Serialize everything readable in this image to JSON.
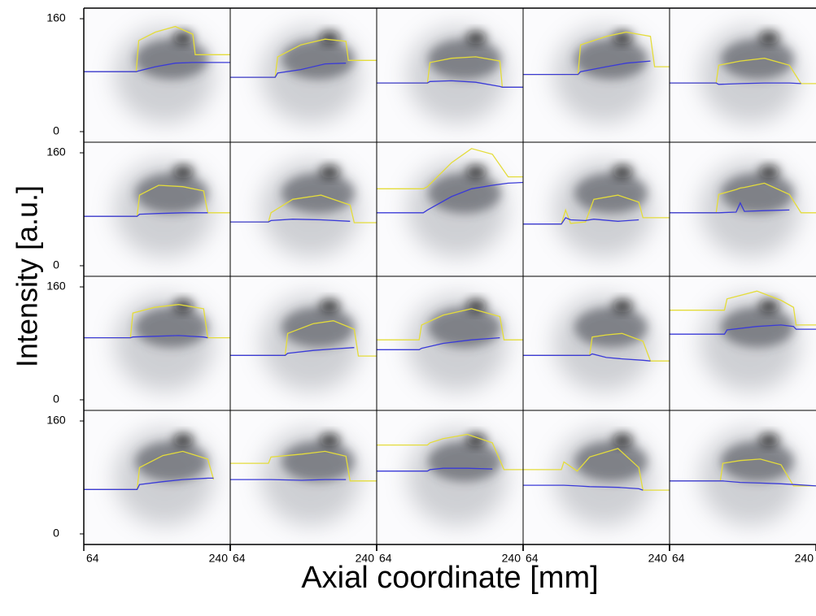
{
  "chart_data": {
    "type": "small-multiples",
    "xlabel": "Axial coordinate [mm]",
    "ylabel": "Intensity [a.u.]",
    "xlim": [
      64,
      240
    ],
    "ylim": [
      -15,
      175
    ],
    "xticks": [
      64,
      240
    ],
    "yticks": [
      0,
      160
    ],
    "panels": [
      {
        "type": "line",
        "x": [
          64,
          127,
          130,
          150,
          174,
          195,
          198,
          240
        ],
        "series": [
          {
            "color": "#e4dc3a",
            "values": [
              85,
              85,
              129,
              141,
              149,
              138,
              109,
              109
            ]
          },
          {
            "color": "#3a3ad8",
            "values": [
              85,
              85,
              86,
              92,
              97,
              98,
              98,
              98
            ]
          }
        ]
      },
      {
        "type": "line",
        "x": [
          64,
          118,
          121,
          149,
          178,
          203,
          206,
          240
        ],
        "series": [
          {
            "color": "#e4dc3a",
            "values": [
              77,
              77,
              106,
              123,
              131,
              128,
              101,
              101
            ]
          },
          {
            "color": "#3a3ad8",
            "values": [
              77,
              77,
              83,
              88,
              96,
              97,
              null,
              null
            ]
          }
        ]
      },
      {
        "type": "line",
        "x": [
          64,
          125,
          128,
          154,
          183,
          212,
          215,
          240
        ],
        "series": [
          {
            "color": "#e4dc3a",
            "values": [
              69,
              69,
              98,
              104,
              106,
              100,
              63,
              63
            ]
          },
          {
            "color": "#3a3ad8",
            "values": [
              69,
              69,
              71,
              72,
              70,
              64,
              63,
              63
            ]
          }
        ]
      },
      {
        "type": "line",
        "x": [
          64,
          130,
          133,
          164,
          188,
          217,
          222,
          240
        ],
        "series": [
          {
            "color": "#e4dc3a",
            "values": [
              81,
              81,
              123,
              135,
              141,
              135,
              92,
              92
            ]
          },
          {
            "color": "#3a3ad8",
            "values": [
              81,
              81,
              85,
              92,
              97,
              100,
              null,
              null
            ]
          }
        ]
      },
      {
        "type": "line",
        "x": [
          64,
          120,
          123,
          149,
          178,
          208,
          222,
          240
        ],
        "series": [
          {
            "color": "#e4dc3a",
            "values": [
              69,
              69,
              94,
              100,
              104,
              94,
              68,
              68
            ]
          },
          {
            "color": "#3a3ad8",
            "values": [
              69,
              69,
              67,
              68,
              69,
              69,
              68,
              null
            ]
          }
        ]
      },
      {
        "type": "line",
        "x": [
          64,
          128,
          131,
          154,
          183,
          208,
          213,
          240
        ],
        "series": [
          {
            "color": "#e4dc3a",
            "values": [
              70,
              70,
              100,
              114,
              112,
              106,
              75,
              75
            ]
          },
          {
            "color": "#3a3ad8",
            "values": [
              70,
              70,
              73,
              74,
              75,
              75,
              75,
              null
            ]
          }
        ]
      },
      {
        "type": "line",
        "x": [
          64,
          110,
          113,
          139,
          173,
          208,
          213,
          240
        ],
        "series": [
          {
            "color": "#e4dc3a",
            "values": [
              62,
              62,
              75,
              94,
              100,
              86,
              61,
              61
            ]
          },
          {
            "color": "#3a3ad8",
            "values": [
              62,
              62,
              64,
              66,
              65,
              63,
              null,
              null
            ]
          }
        ]
      },
      {
        "type": "line",
        "x": [
          64,
          120,
          125,
          154,
          178,
          203,
          222,
          240
        ],
        "series": [
          {
            "color": "#e4dc3a",
            "values": [
              109,
              109,
              112,
              146,
              166,
              158,
              126,
              126
            ]
          },
          {
            "color": "#3a3ad8",
            "values": [
              75,
              75,
              79,
              98,
              109,
              114,
              117,
              118
            ]
          }
        ]
      },
      {
        "type": "line",
        "x": [
          64,
          110,
          115,
          121,
          139,
          149,
          178,
          203,
          208,
          240
        ],
        "series": [
          {
            "color": "#e4dc3a",
            "values": [
              59,
              59,
              79,
              60,
              62,
              94,
              100,
              90,
              68,
              68
            ]
          },
          {
            "color": "#3a3ad8",
            "values": [
              59,
              59,
              68,
              65,
              64,
              66,
              63,
              65,
              null,
              null
            ]
          }
        ]
      },
      {
        "type": "line",
        "x": [
          64,
          120,
          123,
          144,
          149,
          154,
          178,
          208,
          222,
          240
        ],
        "series": [
          {
            "color": "#e4dc3a",
            "values": [
              75,
              75,
              101,
              108,
              110,
              111,
              117,
              101,
              75,
              75
            ]
          },
          {
            "color": "#3a3ad8",
            "values": [
              75,
              75,
              75,
              76,
              89,
              77,
              78,
              79,
              null,
              null
            ]
          }
        ]
      },
      {
        "type": "line",
        "x": [
          64,
          120,
          123,
          149,
          178,
          208,
          213,
          240
        ],
        "series": [
          {
            "color": "#e4dc3a",
            "values": [
              88,
              88,
              123,
              131,
              135,
              129,
              88,
              88
            ]
          },
          {
            "color": "#3a3ad8",
            "values": [
              88,
              88,
              89,
              90,
              91,
              89,
              88,
              null
            ]
          }
        ]
      },
      {
        "type": "line",
        "x": [
          64,
          130,
          133,
          164,
          188,
          213,
          218,
          240
        ],
        "series": [
          {
            "color": "#e4dc3a",
            "values": [
              63,
              63,
              94,
              108,
              112,
              100,
              62,
              62
            ]
          },
          {
            "color": "#3a3ad8",
            "values": [
              63,
              63,
              66,
              70,
              72,
              74,
              null,
              null
            ]
          }
        ]
      },
      {
        "type": "line",
        "x": [
          64,
          115,
          118,
          144,
          178,
          212,
          217,
          240
        ],
        "series": [
          {
            "color": "#e4dc3a",
            "values": [
              85,
              85,
              106,
              120,
              129,
              118,
              85,
              85
            ]
          },
          {
            "color": "#3a3ad8",
            "values": [
              71,
              71,
              73,
              80,
              85,
              88,
              null,
              null
            ]
          }
        ]
      },
      {
        "type": "line",
        "x": [
          64,
          144,
          147,
          164,
          183,
          208,
          217,
          240
        ],
        "series": [
          {
            "color": "#e4dc3a",
            "values": [
              63,
              63,
              89,
              92,
              94,
              83,
              55,
              55
            ]
          },
          {
            "color": "#3a3ad8",
            "values": [
              63,
              63,
              65,
              60,
              58,
              56,
              55,
              null
            ]
          }
        ]
      },
      {
        "type": "line",
        "x": [
          64,
          130,
          133,
          169,
          198,
          213,
          216,
          240
        ],
        "series": [
          {
            "color": "#e4dc3a",
            "values": [
              127,
              127,
              143,
              154,
              141,
              131,
              106,
              106
            ]
          },
          {
            "color": "#3a3ad8",
            "values": [
              93,
              93,
              99,
              104,
              106,
              104,
              100,
              100
            ]
          }
        ]
      },
      {
        "type": "line",
        "x": [
          64,
          128,
          131,
          159,
          183,
          213,
          220,
          240
        ],
        "series": [
          {
            "color": "#e4dc3a",
            "values": [
              63,
              63,
              94,
              111,
              117,
              106,
              77,
              null
            ]
          },
          {
            "color": "#3a3ad8",
            "values": [
              63,
              63,
              70,
              74,
              77,
              79,
              79,
              null
            ]
          }
        ]
      },
      {
        "type": "line",
        "x": [
          64,
          110,
          113,
          150,
          178,
          203,
          208,
          240
        ],
        "series": [
          {
            "color": "#e4dc3a",
            "values": [
              100,
              100,
              109,
              113,
              117,
              110,
              75,
              75
            ]
          },
          {
            "color": "#3a3ad8",
            "values": [
              77,
              77,
              77,
              76,
              77,
              77,
              null,
              null
            ]
          }
        ]
      },
      {
        "type": "line",
        "x": [
          64,
          125,
          128,
          144,
          173,
          203,
          217,
          240
        ],
        "series": [
          {
            "color": "#e4dc3a",
            "values": [
              126,
              126,
              129,
              135,
              141,
              129,
              91,
              91
            ]
          },
          {
            "color": "#3a3ad8",
            "values": [
              89,
              89,
              91,
              93,
              93,
              92,
              null,
              null
            ]
          }
        ]
      },
      {
        "type": "line",
        "x": [
          64,
          110,
          113,
          129,
          144,
          178,
          203,
          208,
          240
        ],
        "series": [
          {
            "color": "#e4dc3a",
            "values": [
              91,
              91,
              102,
              89,
              109,
              121,
              94,
              62,
              62
            ]
          },
          {
            "color": "#3a3ad8",
            "values": [
              69,
              69,
              69,
              68,
              67,
              66,
              64,
              62,
              null
            ]
          }
        ]
      },
      {
        "type": "line",
        "x": [
          64,
          125,
          128,
          149,
          173,
          198,
          213,
          240
        ],
        "series": [
          {
            "color": "#e4dc3a",
            "values": [
              75,
              75,
              100,
              104,
              106,
              98,
              68,
              68
            ]
          },
          {
            "color": "#3a3ad8",
            "values": [
              75,
              75,
              75,
              73,
              72,
              71,
              70,
              68
            ]
          }
        ]
      }
    ]
  }
}
